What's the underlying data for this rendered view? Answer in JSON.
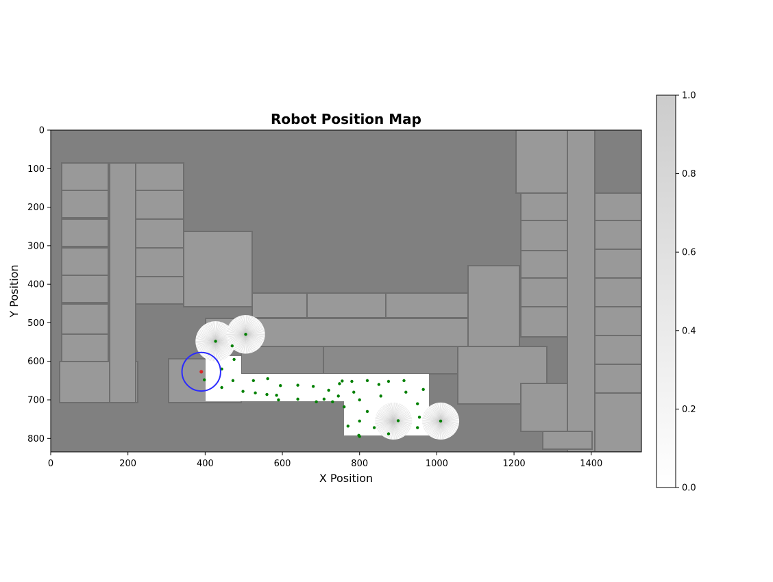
{
  "chart_data": {
    "type": "scatter",
    "title": "Robot Position Map",
    "xlabel": "X Position",
    "ylabel": "Y Position",
    "xlim": [
      0,
      1530
    ],
    "ylim": [
      835,
      0
    ],
    "xticks": [
      0,
      200,
      400,
      600,
      800,
      1000,
      1200,
      1400
    ],
    "yticks": [
      0,
      100,
      200,
      300,
      400,
      500,
      600,
      700,
      800
    ],
    "background": "occupancy grid floor plan (grayscale)",
    "colorbar": {
      "cmap": "Greys",
      "range": [
        0.0,
        1.0
      ],
      "ticks": [
        "0.0",
        "0.2",
        "0.4",
        "0.6",
        "0.8",
        "1.0"
      ]
    },
    "current_position": {
      "x": 390,
      "y": 627,
      "color": "#d62728"
    },
    "sensor_range": {
      "center": [
        390,
        627
      ],
      "radius": 50,
      "color": "#2b2bff"
    },
    "explored_scans": [
      {
        "x": 427,
        "y": 548,
        "r": 52
      },
      {
        "x": 505,
        "y": 530,
        "r": 50
      },
      {
        "x": 888,
        "y": 755,
        "r": 48
      },
      {
        "x": 1010,
        "y": 755,
        "r": 48
      }
    ],
    "waypoints": {
      "color": "#008000",
      "points": [
        [
          427,
          548
        ],
        [
          505,
          530
        ],
        [
          470,
          560
        ],
        [
          475,
          595
        ],
        [
          443,
          620
        ],
        [
          398,
          648
        ],
        [
          472,
          650
        ],
        [
          525,
          650
        ],
        [
          562,
          645
        ],
        [
          595,
          663
        ],
        [
          640,
          662
        ],
        [
          680,
          665
        ],
        [
          720,
          675
        ],
        [
          748,
          658
        ],
        [
          755,
          651
        ],
        [
          780,
          652
        ],
        [
          820,
          650
        ],
        [
          850,
          660
        ],
        [
          875,
          652
        ],
        [
          915,
          650
        ],
        [
          965,
          673
        ],
        [
          443,
          668
        ],
        [
          498,
          678
        ],
        [
          530,
          682
        ],
        [
          560,
          686
        ],
        [
          585,
          688
        ],
        [
          640,
          698
        ],
        [
          688,
          705
        ],
        [
          708,
          698
        ],
        [
          745,
          690
        ],
        [
          785,
          680
        ],
        [
          800,
          700
        ],
        [
          855,
          690
        ],
        [
          920,
          680
        ],
        [
          950,
          710
        ],
        [
          730,
          705
        ],
        [
          760,
          718
        ],
        [
          820,
          730
        ],
        [
          800,
          755
        ],
        [
          770,
          768
        ],
        [
          838,
          772
        ],
        [
          875,
          788
        ],
        [
          900,
          754
        ],
        [
          955,
          745
        ],
        [
          950,
          772
        ],
        [
          1010,
          755
        ],
        [
          800,
          795
        ],
        [
          798,
          792
        ],
        [
          590,
          700
        ]
      ]
    }
  }
}
